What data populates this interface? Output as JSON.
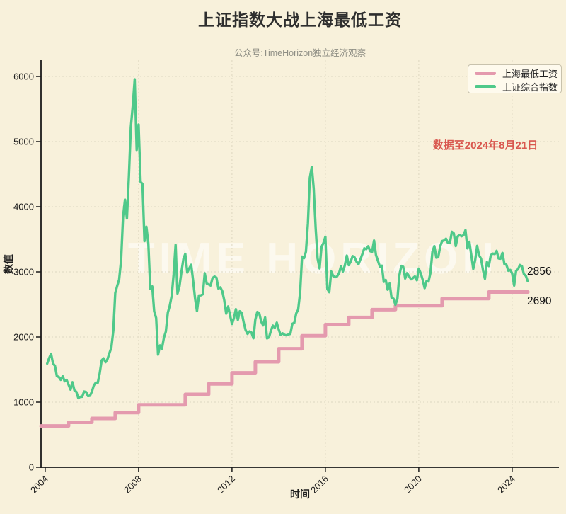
{
  "chart_data": {
    "type": "line",
    "title": "上证指数大战上海最低工资",
    "subtitle": "公众号:TimeHorizon独立经济观察",
    "watermark": "TIME HORIZON",
    "note": "数据至2024年8月21日",
    "xlabel": "时间",
    "ylabel": "数值",
    "x_ticks": [
      "2004",
      "2008",
      "2012",
      "2016",
      "2020",
      "2024"
    ],
    "y_ticks": [
      "0",
      "1000",
      "2000",
      "3000",
      "4000",
      "5000",
      "6000"
    ],
    "xlim": [
      2003.82,
      2026.0
    ],
    "ylim": [
      0,
      6250
    ],
    "grid": "dashed",
    "legend_position": "upper right",
    "colors": {
      "background": "#f8f1db",
      "wage_line": "#e49aae",
      "index_line": "#4fc98a",
      "note_red": "#d9574e"
    },
    "series": [
      {
        "name": "上海最低工资",
        "color": "#e49aae",
        "style": "step",
        "start": [
          2003.82,
          635
        ],
        "steps": [
          [
            2005,
            690
          ],
          [
            2006,
            750
          ],
          [
            2007,
            840
          ],
          [
            2008,
            960
          ],
          [
            2010,
            1120
          ],
          [
            2011,
            1280
          ],
          [
            2012,
            1450
          ],
          [
            2013,
            1620
          ],
          [
            2014,
            1820
          ],
          [
            2015,
            2020
          ],
          [
            2016,
            2190
          ],
          [
            2017,
            2300
          ],
          [
            2018,
            2420
          ],
          [
            2019,
            2480
          ],
          [
            2021,
            2590
          ],
          [
            2023,
            2690
          ]
        ],
        "end_x": 2024.67,
        "end_label": "2690"
      },
      {
        "name": "上证综合指数",
        "color": "#4fc98a",
        "style": "line",
        "x_start": 2004.0833,
        "x_interval": 0.0833333,
        "values": [
          1591,
          1675,
          1742,
          1596,
          1556,
          1399,
          1386,
          1342,
          1397,
          1321,
          1341,
          1267,
          1192,
          1306,
          1181,
          1159,
          1061,
          1081,
          1083,
          1163,
          1156,
          1093,
          1099,
          1161,
          1258,
          1299,
          1298,
          1440,
          1641,
          1672,
          1613,
          1659,
          1752,
          1838,
          2099,
          2675,
          2786,
          2881,
          3184,
          3841,
          4110,
          3821,
          4471,
          5219,
          5552,
          5955,
          4872,
          5262,
          4383,
          4349,
          3473,
          3693,
          3433,
          2736,
          2776,
          2397,
          2294,
          1729,
          1871,
          1821,
          1991,
          2083,
          2373,
          2478,
          2633,
          2959,
          3412,
          2668,
          2779,
          2996,
          3195,
          3277,
          2989,
          3052,
          3109,
          2871,
          2592,
          2398,
          2638,
          2639,
          2656,
          2979,
          2820,
          2808,
          2791,
          2905,
          2928,
          2912,
          2743,
          2762,
          2702,
          2567,
          2359,
          2468,
          2333,
          2199,
          2293,
          2428,
          2263,
          2396,
          2372,
          2225,
          2104,
          2048,
          2086,
          2069,
          1980,
          2269,
          2385,
          2366,
          2237,
          2178,
          2301,
          1979,
          1994,
          2098,
          2175,
          2142,
          2221,
          2116,
          2033,
          2056,
          2033,
          2026,
          2039,
          2048,
          2202,
          2217,
          2364,
          2420,
          2683,
          3235,
          3210,
          3310,
          3748,
          4442,
          4612,
          4277,
          3664,
          3206,
          3053,
          3383,
          3445,
          3539,
          2738,
          2688,
          3004,
          2938,
          2917,
          2930,
          2979,
          3085,
          3005,
          3100,
          3250,
          3104,
          3159,
          3242,
          3223,
          3155,
          3117,
          3192,
          3273,
          3361,
          3349,
          3393,
          3317,
          3307,
          3481,
          3259,
          3169,
          3082,
          3095,
          2847,
          2876,
          2725,
          2821,
          2603,
          2588,
          2494,
          2585,
          2941,
          3091,
          3078,
          2899,
          2979,
          2933,
          2886,
          2905,
          2929,
          2872,
          3050,
          2977,
          2880,
          2750,
          2860,
          2852,
          2985,
          3310,
          3396,
          3218,
          3225,
          3392,
          3473,
          3483,
          3509,
          3442,
          3447,
          3615,
          3591,
          3397,
          3544,
          3568,
          3547,
          3564,
          3640,
          3361,
          3462,
          3252,
          3047,
          3186,
          3399,
          3253,
          3202,
          3024,
          2893,
          3151,
          3089,
          3256,
          3280,
          3273,
          3323,
          3205,
          3202,
          3291,
          3120,
          3110,
          3019,
          3030,
          2975,
          2789,
          3015,
          3041,
          3105,
          3087,
          2967,
          2939,
          2856
        ],
        "end_label": "2856"
      }
    ]
  }
}
